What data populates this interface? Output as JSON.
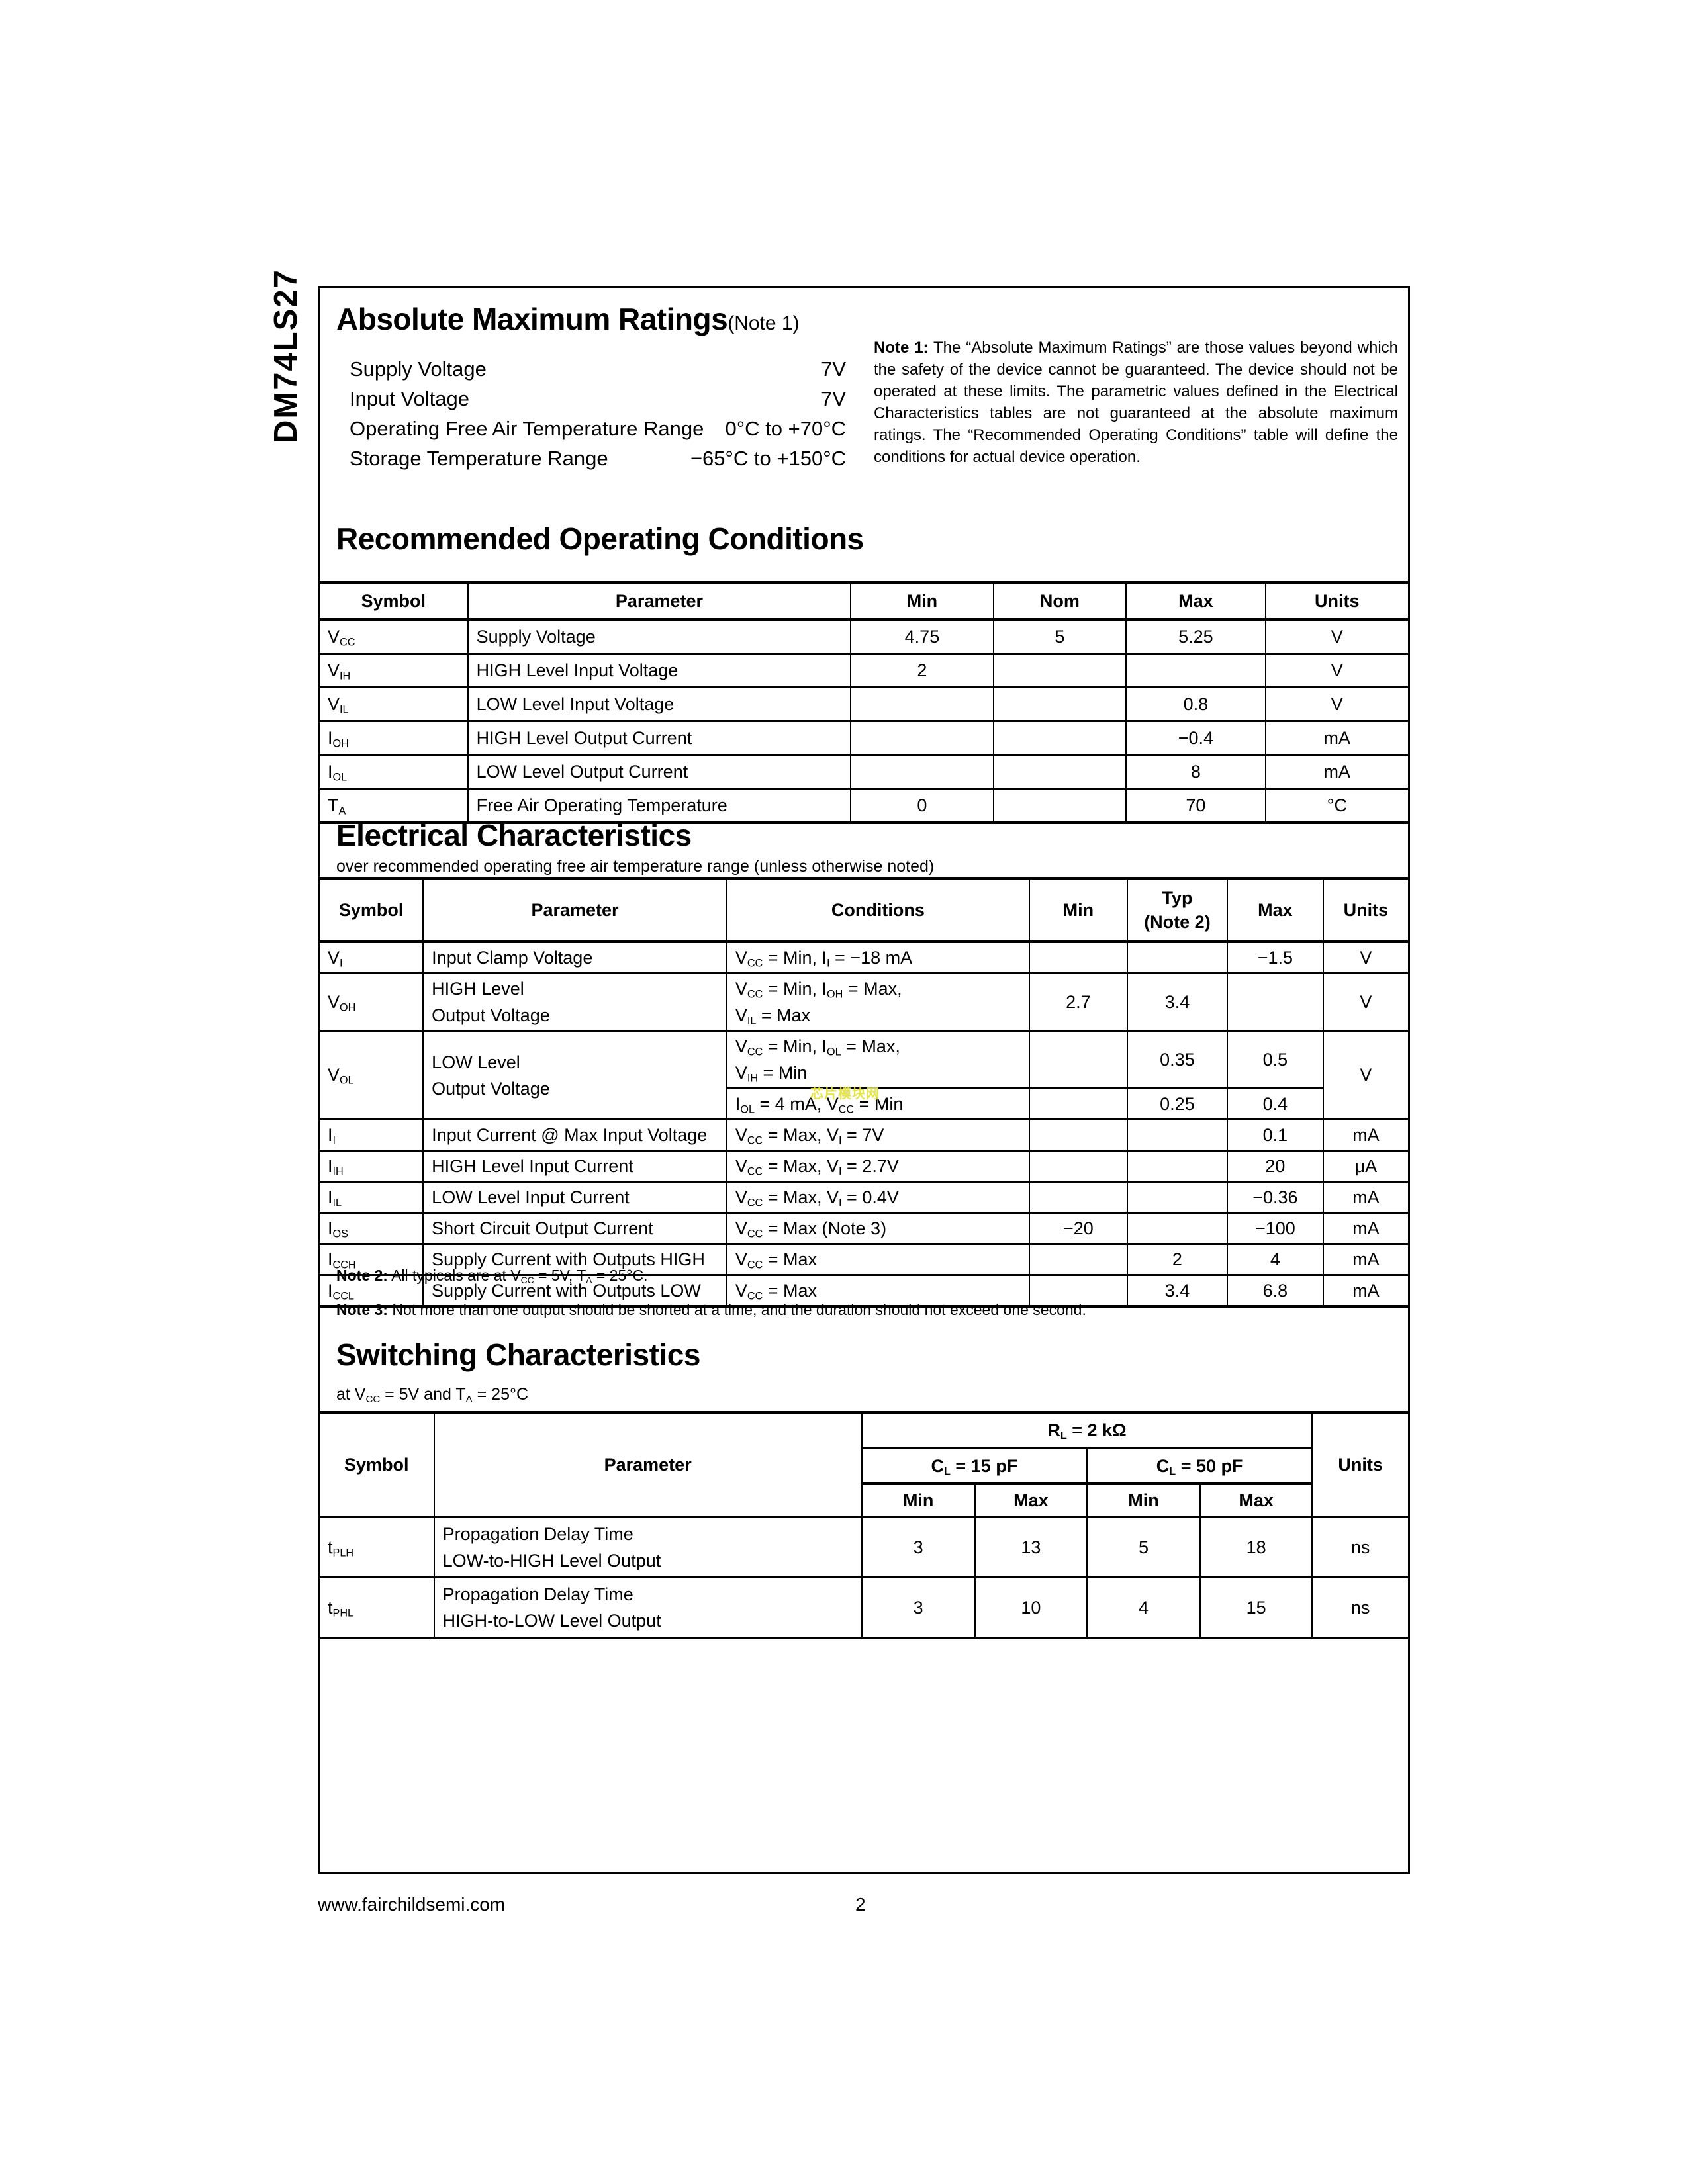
{
  "page": {
    "part_number": "DM74LS27",
    "footer_url": "www.fairchildsemi.com",
    "page_number": "2",
    "watermark": "芯片模块网"
  },
  "amr": {
    "title": "Absolute Maximum Ratings",
    "title_note": "(Note 1)",
    "items": [
      {
        "label": "Supply Voltage",
        "value": "7V"
      },
      {
        "label": "Input Voltage",
        "value": "7V"
      },
      {
        "label": "Operating Free Air Temperature Range",
        "value": "0°C to +70°C"
      },
      {
        "label": "Storage Temperature Range",
        "value": "−65°C to +150°C"
      }
    ],
    "note1_label": "Note 1:",
    "note1_text": "The “Absolute Maximum Ratings” are those values beyond which the safety of the device cannot be guaranteed. The device should not be operated at these limits. The parametric values defined in the Electrical Characteristics tables are not guaranteed at the absolute maximum ratings. The “Recommended Operating Conditions” table will define the conditions for actual device operation."
  },
  "roc": {
    "title": "Recommended Operating Conditions",
    "headers": {
      "symbol": "Symbol",
      "parameter": "Parameter",
      "min": "Min",
      "nom": "Nom",
      "max": "Max",
      "units": "Units"
    },
    "rows": [
      {
        "symbol": [
          [
            "V",
            "CC"
          ]
        ],
        "parameter": "Supply Voltage",
        "min": "4.75",
        "nom": "5",
        "max": "5.25",
        "units": "V"
      },
      {
        "symbol": [
          [
            "V",
            "IH"
          ]
        ],
        "parameter": "HIGH Level Input Voltage",
        "min": "2",
        "nom": "",
        "max": "",
        "units": "V"
      },
      {
        "symbol": [
          [
            "V",
            "IL"
          ]
        ],
        "parameter": "LOW Level Input Voltage",
        "min": "",
        "nom": "",
        "max": "0.8",
        "units": "V"
      },
      {
        "symbol": [
          [
            "I",
            "OH"
          ]
        ],
        "parameter": "HIGH Level Output Current",
        "min": "",
        "nom": "",
        "max": "−0.4",
        "units": "mA"
      },
      {
        "symbol": [
          [
            "I",
            "OL"
          ]
        ],
        "parameter": "LOW Level Output Current",
        "min": "",
        "nom": "",
        "max": "8",
        "units": "mA"
      },
      {
        "symbol": [
          [
            "T",
            "A"
          ]
        ],
        "parameter": "Free Air Operating Temperature",
        "min": "0",
        "nom": "",
        "max": "70",
        "units": "°C"
      }
    ]
  },
  "ec": {
    "title": "Electrical Characteristics",
    "subtitle": "over recommended operating free air temperature range (unless otherwise noted)",
    "headers": {
      "symbol": "Symbol",
      "parameter": "Parameter",
      "conditions": "Conditions",
      "min": "Min",
      "typ_line1": "Typ",
      "typ_line2": "(Note 2)",
      "max": "Max",
      "units": "Units"
    },
    "rows": {
      "vi": {
        "symbol": [
          [
            "V",
            "I"
          ]
        ],
        "parameter": "Input Clamp Voltage",
        "conditions": [
          [
            "V",
            "CC"
          ],
          [
            " = Min, I",
            "I"
          ],
          [
            " = −18 mA"
          ]
        ],
        "min": "",
        "typ": "",
        "max": "−1.5",
        "units": "V"
      },
      "voh": {
        "symbol": [
          [
            "V",
            "OH"
          ]
        ],
        "parameter": "HIGH Level\nOutput Voltage",
        "conditions_line1": [
          [
            "V",
            "CC"
          ],
          [
            " = Min, I",
            "OH"
          ],
          [
            " = Max,"
          ]
        ],
        "conditions_line2": [
          [
            "V",
            "IL"
          ],
          [
            " = Max"
          ]
        ],
        "min": "2.7",
        "typ": "3.4",
        "max": "",
        "units": "V"
      },
      "vol": {
        "symbol": [
          [
            "V",
            "OL"
          ]
        ],
        "parameter": "LOW Level\nOutput Voltage",
        "conditions_line1": [
          [
            "V",
            "CC"
          ],
          [
            " = Min, I",
            "OL"
          ],
          [
            " = Max,"
          ]
        ],
        "conditions_line2": [
          [
            "V",
            "IH"
          ],
          [
            " = Min"
          ]
        ],
        "min": "",
        "typ": "0.35",
        "max": "0.5",
        "units": "V"
      },
      "vol2": {
        "conditions": [
          [
            "I",
            "OL"
          ],
          [
            " = 4 mA, V",
            "CC"
          ],
          [
            " = Min"
          ]
        ],
        "min": "",
        "typ": "0.25",
        "max": "0.4"
      },
      "ii": {
        "symbol": [
          [
            "I",
            "I"
          ]
        ],
        "parameter": "Input Current @ Max Input Voltage",
        "conditions": [
          [
            "V",
            "CC"
          ],
          [
            " = Max, V",
            "I"
          ],
          [
            " = 7V"
          ]
        ],
        "min": "",
        "typ": "",
        "max": "0.1",
        "units": "mA"
      },
      "iih": {
        "symbol": [
          [
            "I",
            "IH"
          ]
        ],
        "parameter": "HIGH Level Input Current",
        "conditions": [
          [
            "V",
            "CC"
          ],
          [
            " = Max, V",
            "I"
          ],
          [
            " = 2.7V"
          ]
        ],
        "min": "",
        "typ": "",
        "max": "20",
        "units": "μA"
      },
      "iil": {
        "symbol": [
          [
            "I",
            "IL"
          ]
        ],
        "parameter": "LOW Level Input Current",
        "conditions": [
          [
            "V",
            "CC"
          ],
          [
            " = Max, V",
            "I"
          ],
          [
            " = 0.4V"
          ]
        ],
        "min": "",
        "typ": "",
        "max": "−0.36",
        "units": "mA"
      },
      "ios": {
        "symbol": [
          [
            "I",
            "OS"
          ]
        ],
        "parameter": "Short Circuit Output Current",
        "conditions": [
          [
            "V",
            "CC"
          ],
          [
            " = Max (Note 3)"
          ]
        ],
        "min": "−20",
        "typ": "",
        "max": "−100",
        "units": "mA"
      },
      "icch": {
        "symbol": [
          [
            "I",
            "CCH"
          ]
        ],
        "parameter": "Supply Current with Outputs HIGH",
        "conditions": [
          [
            "V",
            "CC"
          ],
          [
            " = Max"
          ]
        ],
        "min": "",
        "typ": "2",
        "max": "4",
        "units": "mA"
      },
      "iccl": {
        "symbol": [
          [
            "I",
            "CCL"
          ]
        ],
        "parameter": "Supply Current with Outputs LOW",
        "conditions": [
          [
            "V",
            "CC"
          ],
          [
            " = Max"
          ]
        ],
        "min": "",
        "typ": "3.4",
        "max": "6.8",
        "units": "mA"
      }
    },
    "note2_label": "Note 2:",
    "note2_rich": [
      [
        "All typicals are at V",
        "CC"
      ],
      [
        " = 5V, T",
        "A"
      ],
      [
        " = 25°C."
      ]
    ],
    "note3_label": "Note 3:",
    "note3_text": "Not more than one output should be shorted at a time, and the duration should not exceed one second."
  },
  "sc": {
    "title": "Switching Characteristics",
    "subtitle_rich": [
      [
        "at V",
        "CC"
      ],
      [
        " = 5V and T",
        "A"
      ],
      [
        " = 25°C"
      ]
    ],
    "headers": {
      "symbol": "Symbol",
      "parameter": "Parameter",
      "units": "Units",
      "rl_rich": [
        [
          "R",
          "L"
        ],
        [
          " = 2 kΩ"
        ]
      ],
      "cl15_rich": [
        [
          "C",
          "L"
        ],
        [
          " = 15 pF"
        ]
      ],
      "cl50_rich": [
        [
          "C",
          "L"
        ],
        [
          " = 50 pF"
        ]
      ],
      "min": "Min",
      "max": "Max"
    },
    "rows": {
      "tplh": {
        "symbol": [
          [
            "t",
            "PLH"
          ]
        ],
        "parameter": "Propagation Delay Time\nLOW-to-HIGH Level Output",
        "min15": "3",
        "max15": "13",
        "min50": "5",
        "max50": "18",
        "units": "ns"
      },
      "tphl": {
        "symbol": [
          [
            "t",
            "PHL"
          ]
        ],
        "parameter": "Propagation Delay Time\nHIGH-to-LOW Level Output",
        "min15": "3",
        "max15": "10",
        "min50": "4",
        "max50": "15",
        "units": "ns"
      }
    }
  }
}
